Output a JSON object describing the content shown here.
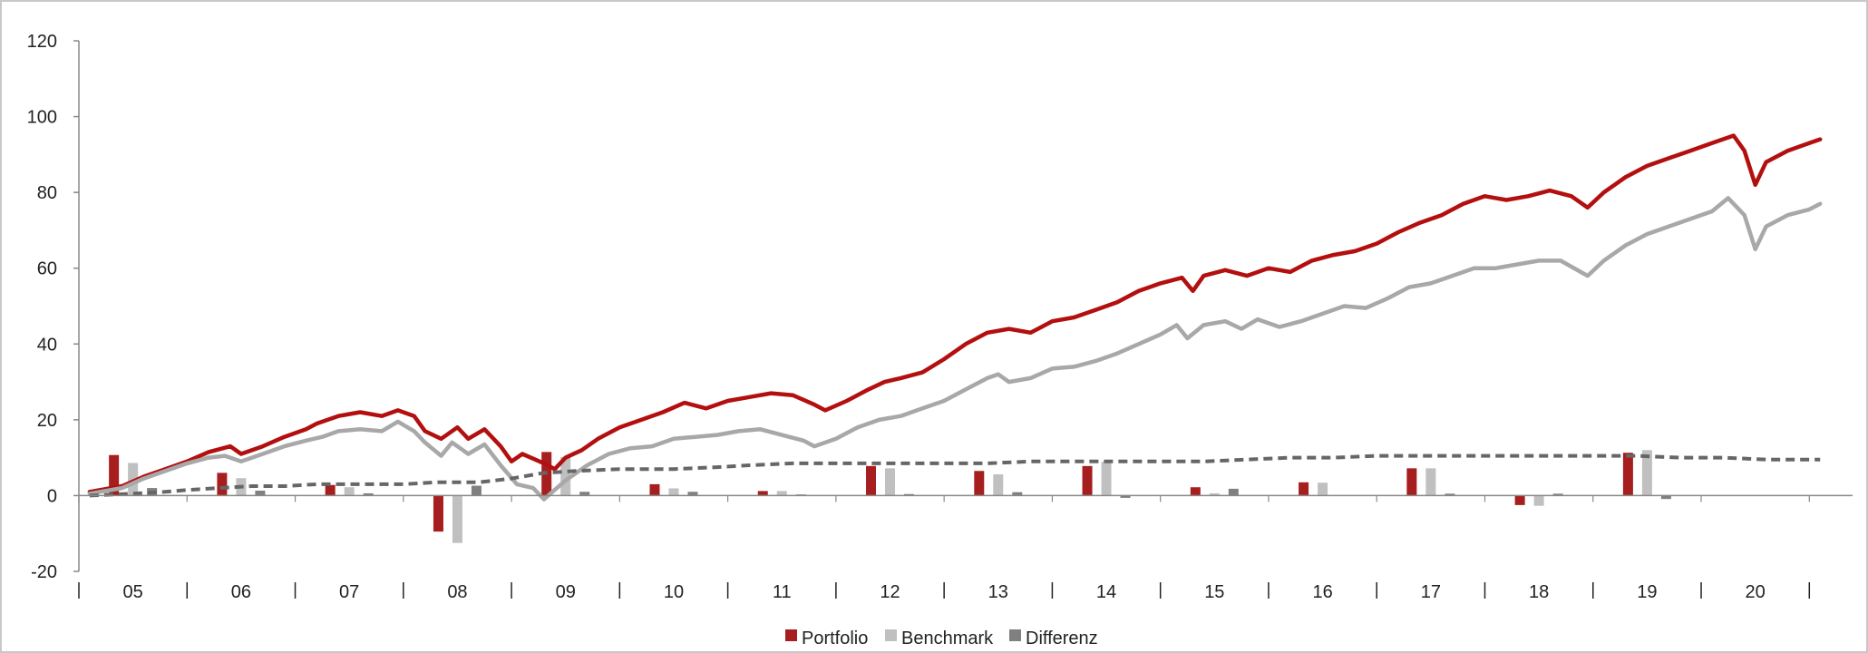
{
  "chart_data": {
    "type": "bar",
    "title": "",
    "xlabel": "",
    "ylabel": "",
    "ylim": [
      -20,
      120
    ],
    "y_ticks": [
      -20,
      0,
      20,
      40,
      60,
      80,
      100,
      120
    ],
    "x_axis": {
      "range": [
        2004.0,
        2020.4
      ],
      "category_labels": [
        "05",
        "06",
        "07",
        "08",
        "09",
        "10",
        "11",
        "12",
        "13",
        "14",
        "15",
        "16",
        "17",
        "18",
        "19",
        "20"
      ],
      "separator_positions": [
        2004.0,
        2005.0,
        2006.0,
        2007.0,
        2008.0,
        2009.0,
        2010.0,
        2011.0,
        2012.0,
        2013.0,
        2014.0,
        2015.0,
        2016.0,
        2017.0,
        2018.0,
        2019.0,
        2020.0
      ]
    },
    "grid": false,
    "legend": {
      "position": "bottom-center",
      "entries": [
        "Portfolio",
        "Benchmark",
        "Differenz"
      ]
    },
    "colors": {
      "portfolio": "#a61e1e",
      "benchmark": "#c0c0c0",
      "differenz": "#808080",
      "line_portfolio": "#b30f0f",
      "line_benchmark": "#a8a8a8",
      "line_differenz": "#666666",
      "axis": "#888888"
    },
    "bar_series": [
      {
        "name": "Portfolio",
        "values": [
          10.7,
          6.0,
          2.8,
          -9.5,
          11.5,
          3.0,
          1.2,
          7.8,
          6.5,
          7.8,
          2.2,
          3.5,
          7.2,
          -2.5,
          11.3
        ]
      },
      {
        "name": "Benchmark",
        "values": [
          8.6,
          4.6,
          2.2,
          -12.5,
          10.2,
          1.9,
          1.2,
          7.2,
          5.6,
          8.9,
          0.6,
          3.4,
          7.2,
          -2.7,
          12.0
        ]
      },
      {
        "name": "Differenz",
        "values": [
          2.0,
          1.3,
          0.6,
          2.6,
          1.0,
          1.0,
          0.3,
          0.4,
          0.9,
          -0.6,
          1.8,
          0.1,
          0.5,
          0.5,
          -0.9
        ]
      }
    ],
    "bar_x": [
      2004.5,
      2005.5,
      2006.5,
      2007.5,
      2008.5,
      2009.5,
      2010.5,
      2011.5,
      2012.5,
      2013.5,
      2014.5,
      2015.5,
      2016.5,
      2017.5,
      2018.5
    ],
    "line_series": [
      {
        "style": "solid",
        "color_key": "line_portfolio",
        "points": [
          [
            2004.1,
            1.0
          ],
          [
            2004.4,
            2.5
          ],
          [
            2004.6,
            5.0
          ],
          [
            2004.8,
            7.0
          ],
          [
            2005.0,
            9.0
          ],
          [
            2005.2,
            11.5
          ],
          [
            2005.4,
            13.0
          ],
          [
            2005.5,
            11.0
          ],
          [
            2005.7,
            13.0
          ],
          [
            2005.9,
            15.5
          ],
          [
            2006.1,
            17.5
          ],
          [
            2006.2,
            19.0
          ],
          [
            2006.4,
            21.0
          ],
          [
            2006.6,
            22.0
          ],
          [
            2006.8,
            21.0
          ],
          [
            2006.95,
            22.5
          ],
          [
            2007.1,
            21.0
          ],
          [
            2007.2,
            17.0
          ],
          [
            2007.35,
            15.0
          ],
          [
            2007.5,
            18.0
          ],
          [
            2007.6,
            15.0
          ],
          [
            2007.75,
            17.5
          ],
          [
            2007.9,
            13.0
          ],
          [
            2008.0,
            9.0
          ],
          [
            2008.1,
            11.0
          ],
          [
            2008.3,
            8.5
          ],
          [
            2008.4,
            7.0
          ],
          [
            2008.5,
            10.0
          ],
          [
            2008.65,
            12.0
          ],
          [
            2008.8,
            15.0
          ],
          [
            2009.0,
            18.0
          ],
          [
            2009.2,
            20.0
          ],
          [
            2009.4,
            22.0
          ],
          [
            2009.6,
            24.5
          ],
          [
            2009.8,
            23.0
          ],
          [
            2010.0,
            25.0
          ],
          [
            2010.2,
            26.0
          ],
          [
            2010.4,
            27.0
          ],
          [
            2010.6,
            26.5
          ],
          [
            2010.8,
            24.0
          ],
          [
            2010.9,
            22.5
          ],
          [
            2011.1,
            25.0
          ],
          [
            2011.3,
            28.0
          ],
          [
            2011.45,
            30.0
          ],
          [
            2011.6,
            31.0
          ],
          [
            2011.8,
            32.5
          ],
          [
            2012.0,
            36.0
          ],
          [
            2012.2,
            40.0
          ],
          [
            2012.4,
            43.0
          ],
          [
            2012.6,
            44.0
          ],
          [
            2012.8,
            43.0
          ],
          [
            2013.0,
            46.0
          ],
          [
            2013.2,
            47.0
          ],
          [
            2013.4,
            49.0
          ],
          [
            2013.6,
            51.0
          ],
          [
            2013.8,
            54.0
          ],
          [
            2014.0,
            56.0
          ],
          [
            2014.2,
            57.5
          ],
          [
            2014.3,
            54.0
          ],
          [
            2014.4,
            58.0
          ],
          [
            2014.6,
            59.5
          ],
          [
            2014.8,
            58.0
          ],
          [
            2015.0,
            60.0
          ],
          [
            2015.2,
            59.0
          ],
          [
            2015.4,
            62.0
          ],
          [
            2015.6,
            63.5
          ],
          [
            2015.8,
            64.5
          ],
          [
            2016.0,
            66.5
          ],
          [
            2016.2,
            69.5
          ],
          [
            2016.4,
            72.0
          ],
          [
            2016.6,
            74.0
          ],
          [
            2016.8,
            77.0
          ],
          [
            2017.0,
            79.0
          ],
          [
            2017.2,
            78.0
          ],
          [
            2017.4,
            79.0
          ],
          [
            2017.6,
            80.5
          ],
          [
            2017.8,
            79.0
          ],
          [
            2017.95,
            76.0
          ],
          [
            2018.1,
            80.0
          ],
          [
            2018.3,
            84.0
          ],
          [
            2018.5,
            87.0
          ],
          [
            2018.7,
            89.0
          ],
          [
            2018.9,
            91.0
          ],
          [
            2019.1,
            93.0
          ],
          [
            2019.3,
            95.0
          ],
          [
            2019.4,
            91.0
          ],
          [
            2019.5,
            82.0
          ],
          [
            2019.6,
            88.0
          ],
          [
            2019.8,
            91.0
          ],
          [
            2020.0,
            93.0
          ],
          [
            2020.1,
            94.0
          ]
        ]
      },
      {
        "style": "solid",
        "color_key": "line_benchmark",
        "points": [
          [
            2004.1,
            0.5
          ],
          [
            2004.4,
            2.0
          ],
          [
            2004.6,
            4.5
          ],
          [
            2004.8,
            6.5
          ],
          [
            2005.0,
            8.5
          ],
          [
            2005.2,
            10.0
          ],
          [
            2005.35,
            10.5
          ],
          [
            2005.5,
            9.0
          ],
          [
            2005.7,
            11.0
          ],
          [
            2005.9,
            13.0
          ],
          [
            2006.1,
            14.5
          ],
          [
            2006.25,
            15.5
          ],
          [
            2006.4,
            17.0
          ],
          [
            2006.6,
            17.5
          ],
          [
            2006.8,
            17.0
          ],
          [
            2006.95,
            19.5
          ],
          [
            2007.1,
            17.0
          ],
          [
            2007.2,
            14.0
          ],
          [
            2007.35,
            10.5
          ],
          [
            2007.45,
            14.0
          ],
          [
            2007.6,
            11.0
          ],
          [
            2007.75,
            13.5
          ],
          [
            2007.9,
            8.0
          ],
          [
            2008.05,
            3.0
          ],
          [
            2008.2,
            2.0
          ],
          [
            2008.3,
            -1.0
          ],
          [
            2008.5,
            4.0
          ],
          [
            2008.7,
            8.0
          ],
          [
            2008.9,
            11.0
          ],
          [
            2009.1,
            12.5
          ],
          [
            2009.3,
            13.0
          ],
          [
            2009.5,
            15.0
          ],
          [
            2009.7,
            15.5
          ],
          [
            2009.9,
            16.0
          ],
          [
            2010.1,
            17.0
          ],
          [
            2010.3,
            17.5
          ],
          [
            2010.5,
            16.0
          ],
          [
            2010.7,
            14.5
          ],
          [
            2010.8,
            13.0
          ],
          [
            2011.0,
            15.0
          ],
          [
            2011.2,
            18.0
          ],
          [
            2011.4,
            20.0
          ],
          [
            2011.6,
            21.0
          ],
          [
            2011.8,
            23.0
          ],
          [
            2012.0,
            25.0
          ],
          [
            2012.2,
            28.0
          ],
          [
            2012.4,
            31.0
          ],
          [
            2012.5,
            32.0
          ],
          [
            2012.6,
            30.0
          ],
          [
            2012.8,
            31.0
          ],
          [
            2013.0,
            33.5
          ],
          [
            2013.2,
            34.0
          ],
          [
            2013.4,
            35.5
          ],
          [
            2013.6,
            37.5
          ],
          [
            2013.8,
            40.0
          ],
          [
            2014.0,
            42.5
          ],
          [
            2014.15,
            45.0
          ],
          [
            2014.25,
            41.5
          ],
          [
            2014.4,
            45.0
          ],
          [
            2014.6,
            46.0
          ],
          [
            2014.75,
            44.0
          ],
          [
            2014.9,
            46.5
          ],
          [
            2015.1,
            44.5
          ],
          [
            2015.3,
            46.0
          ],
          [
            2015.5,
            48.0
          ],
          [
            2015.7,
            50.0
          ],
          [
            2015.9,
            49.5
          ],
          [
            2016.1,
            52.0
          ],
          [
            2016.3,
            55.0
          ],
          [
            2016.5,
            56.0
          ],
          [
            2016.7,
            58.0
          ],
          [
            2016.9,
            60.0
          ],
          [
            2017.1,
            60.0
          ],
          [
            2017.3,
            61.0
          ],
          [
            2017.5,
            62.0
          ],
          [
            2017.7,
            62.0
          ],
          [
            2017.95,
            58.0
          ],
          [
            2018.1,
            62.0
          ],
          [
            2018.3,
            66.0
          ],
          [
            2018.5,
            69.0
          ],
          [
            2018.7,
            71.0
          ],
          [
            2018.9,
            73.0
          ],
          [
            2019.1,
            75.0
          ],
          [
            2019.25,
            78.5
          ],
          [
            2019.4,
            74.0
          ],
          [
            2019.5,
            65.0
          ],
          [
            2019.6,
            71.0
          ],
          [
            2019.8,
            74.0
          ],
          [
            2020.0,
            75.5
          ],
          [
            2020.1,
            77.0
          ]
        ]
      },
      {
        "style": "dashed",
        "color_key": "line_differenz",
        "points": [
          [
            2004.1,
            0.0
          ],
          [
            2004.5,
            0.5
          ],
          [
            2004.8,
            1.0
          ],
          [
            2005.0,
            1.5
          ],
          [
            2005.3,
            2.0
          ],
          [
            2005.6,
            2.5
          ],
          [
            2005.9,
            2.5
          ],
          [
            2006.2,
            3.0
          ],
          [
            2006.6,
            3.0
          ],
          [
            2007.0,
            3.0
          ],
          [
            2007.3,
            3.5
          ],
          [
            2007.7,
            3.5
          ],
          [
            2008.0,
            4.5
          ],
          [
            2008.3,
            6.0
          ],
          [
            2008.6,
            6.5
          ],
          [
            2009.0,
            7.0
          ],
          [
            2009.5,
            7.0
          ],
          [
            2009.9,
            7.5
          ],
          [
            2010.2,
            8.0
          ],
          [
            2010.6,
            8.5
          ],
          [
            2011.0,
            8.5
          ],
          [
            2011.5,
            8.5
          ],
          [
            2012.0,
            8.5
          ],
          [
            2012.4,
            8.5
          ],
          [
            2012.8,
            9.0
          ],
          [
            2013.2,
            9.0
          ],
          [
            2013.6,
            9.0
          ],
          [
            2014.0,
            9.0
          ],
          [
            2014.4,
            9.0
          ],
          [
            2014.8,
            9.5
          ],
          [
            2015.2,
            10.0
          ],
          [
            2015.6,
            10.0
          ],
          [
            2016.0,
            10.5
          ],
          [
            2016.4,
            10.5
          ],
          [
            2016.8,
            10.5
          ],
          [
            2017.2,
            10.5
          ],
          [
            2017.6,
            10.5
          ],
          [
            2018.0,
            10.5
          ],
          [
            2018.4,
            10.5
          ],
          [
            2018.8,
            10.0
          ],
          [
            2019.2,
            10.0
          ],
          [
            2019.6,
            9.5
          ],
          [
            2020.1,
            9.5
          ]
        ]
      }
    ]
  }
}
